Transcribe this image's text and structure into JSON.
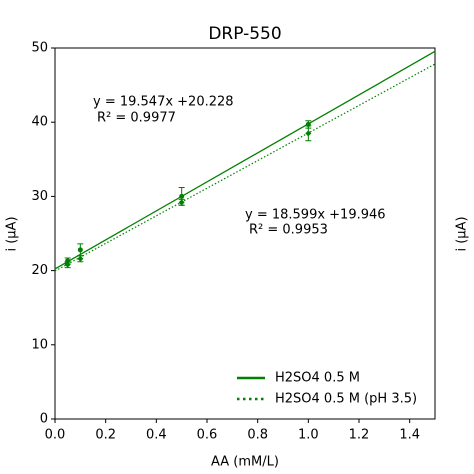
{
  "chart_data": {
    "type": "scatter",
    "title": "DRP-550",
    "x_label": "AA (mM/L)",
    "y_label": "i (μA)",
    "y2_label": "i (μA)",
    "xlim": [
      0,
      1.5
    ],
    "xticks": [
      {
        "value": 0,
        "label": "0.0"
      },
      0.2,
      0.4,
      0.6,
      0.8,
      {
        "value": 1,
        "label": "1.0"
      },
      1.2,
      1.4
    ],
    "ylim": [
      0,
      50
    ],
    "yticks": [
      0,
      10,
      20,
      30,
      40,
      50
    ],
    "legend": "lower right",
    "series": [
      {
        "name": "H2SO4 0.5 M",
        "color": "#008000",
        "line_style": "solid",
        "x": [
          0.05,
          0.1,
          0.5,
          1
        ],
        "values": [
          21.3,
          22.8,
          30.0,
          39.7
        ],
        "errors": [
          0.4,
          0.8,
          1.2,
          0.5
        ],
        "fit": {
          "slope": 19.547,
          "intercept": 20.228
        },
        "equation": "y = 19.547x +20.228",
        "r2_label": "R² = 0.9977",
        "label_color": "#000000"
      },
      {
        "name": "H2SO4 0.5 M (pH 3.5)",
        "color": "#008000",
        "line_style": "dotted",
        "x": [
          0.05,
          0.1,
          0.5,
          1
        ],
        "values": [
          20.8,
          21.6,
          29.2,
          38.5
        ],
        "errors": [
          0.4,
          0.4,
          0.4,
          1.0
        ],
        "fit": {
          "slope": 18.599,
          "intercept": 19.946
        },
        "equation": "y = 18.599x +19.946",
        "r2_label": "R² = 0.9953",
        "label_color": "#d62020"
      }
    ]
  }
}
